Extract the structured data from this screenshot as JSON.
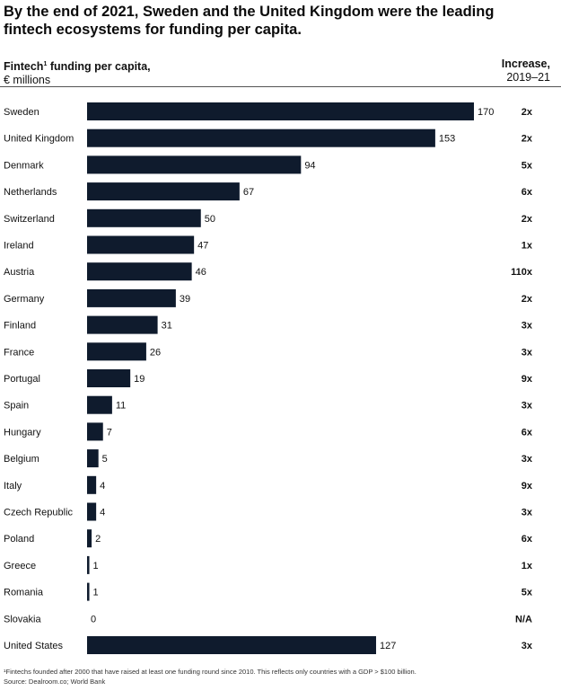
{
  "title": "By the end of 2021, Sweden and the United Kingdom were the leading fintech ecosystems for funding per capita.",
  "header": {
    "left_label": "Fintech",
    "left_sup": "1",
    "left_label_rest": " funding per capita,",
    "left_unit": "€ millions",
    "right_label": "Increase,",
    "right_range": "2019–21"
  },
  "chart_data": {
    "type": "bar",
    "orientation": "horizontal",
    "categories": [
      "Sweden",
      "United Kingdom",
      "Denmark",
      "Netherlands",
      "Switzerland",
      "Ireland",
      "Austria",
      "Germany",
      "Finland",
      "France",
      "Portugal",
      "Spain",
      "Hungary",
      "Belgium",
      "Italy",
      "Czech Republic",
      "Poland",
      "Greece",
      "Romania",
      "Slovakia",
      "United States"
    ],
    "values": [
      170,
      153,
      94,
      67,
      50,
      47,
      46,
      39,
      31,
      26,
      19,
      11,
      7,
      5,
      4,
      4,
      2,
      1,
      1,
      0,
      127
    ],
    "increase": [
      "2x",
      "2x",
      "5x",
      "6x",
      "2x",
      "1x",
      "110x",
      "2x",
      "3x",
      "3x",
      "9x",
      "3x",
      "6x",
      "3x",
      "9x",
      "3x",
      "6x",
      "1x",
      "5x",
      "N/A",
      "3x"
    ],
    "xlim": [
      0,
      170
    ],
    "grid": false,
    "bar_color": "#0f1b2d"
  },
  "footnote": {
    "line1": "¹Fintechs founded after 2000 that have raised at least one funding round since 2010. This reflects only countries with a GDP > $100 billion.",
    "line2": "Source: Dealroom.co; World Bank"
  }
}
